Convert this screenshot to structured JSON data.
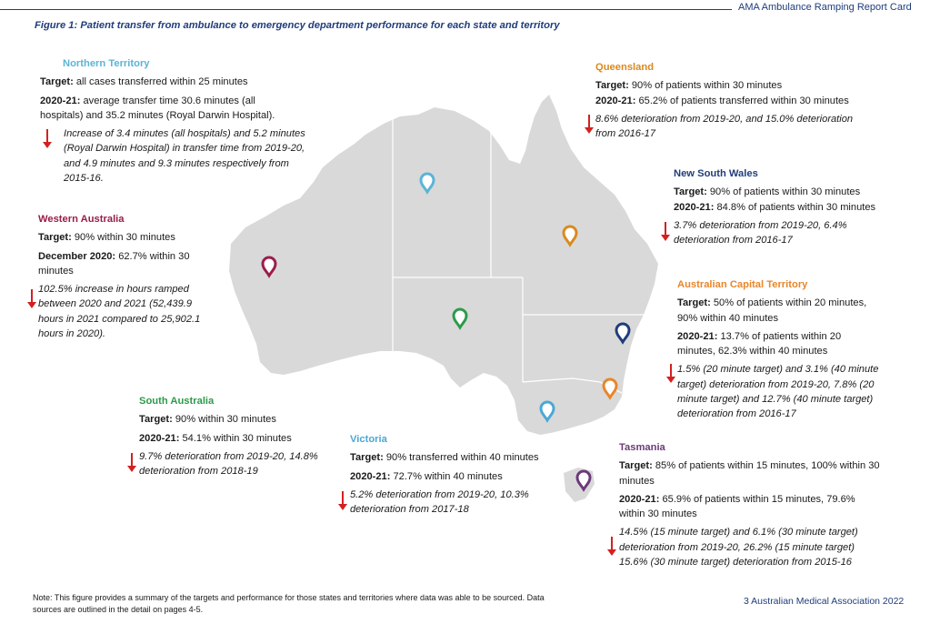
{
  "header": {
    "report_title": "AMA Ambulance Ramping Report Card"
  },
  "figure_title": "Figure 1: Patient transfer from ambulance to emergency department performance for each state and territory",
  "colors": {
    "navy": "#1f3d7a",
    "arrow_red": "#d42020",
    "map_fill": "#d9d9d9"
  },
  "regions": {
    "nt": {
      "name": "Northern Territory",
      "color": "#5ab4d6",
      "target_label": "Target:",
      "target": "all cases transferred within 25 minutes",
      "perf_label": "2020-21:",
      "perf_line1": "average transfer time 30.6 minutes (all",
      "perf_line2": "hospitals) and 35.2 minutes (Royal Darwin Hospital).",
      "change_lines": [
        "Increase of 3.4 minutes (all hospitals) and 5.2 minutes",
        "(Royal Darwin Hospital) in transfer time from 2019-20,",
        "and 4.9 minutes and 9.3 minutes respectively from",
        "2015-16."
      ]
    },
    "wa": {
      "name": "Western Australia",
      "color": "#9b1c4a",
      "target_label": "Target:",
      "target": "90% within 30 minutes",
      "perf_label": "December 2020:",
      "perf_line1": "62.7% within 30",
      "perf_line2": "minutes",
      "change_lines": [
        "102.5% increase in hours ramped",
        "between 2020 and 2021 (52,439.9",
        "hours in 2021 compared to 25,902.1",
        "hours in 2020)."
      ]
    },
    "qld": {
      "name": "Queensland",
      "color": "#d98a1e",
      "target_label": "Target:",
      "target": "90% of patients within 30 minutes",
      "perf_label": "2020-21:",
      "perf_line1": "65.2% of patients transferred within 30 minutes",
      "change_lines": [
        "8.6% deterioration from 2019-20, and 15.0% deterioration",
        "from 2016-17"
      ]
    },
    "nsw": {
      "name": "New South Wales",
      "color": "#1f3d7a",
      "target_label": "Target:",
      "target": "90% of patients within 30 minutes",
      "perf_label": "2020-21:",
      "perf_line1": "84.8% of patients within 30 minutes",
      "change_lines": [
        "3.7% deterioration from 2019-20, 6.4%",
        "deterioration from 2016-17"
      ]
    },
    "act": {
      "name": "Australian Capital Territory",
      "color": "#e8862a",
      "target_label": "Target:",
      "target_line1": "50% of patients within 20 minutes,",
      "target_line2": "90% within 40 minutes",
      "perf_label": "2020-21:",
      "perf_line1": "13.7% of patients within 20",
      "perf_line2": "minutes, 62.3% within 40 minutes",
      "change_lines": [
        "1.5% (20 minute target) and 3.1% (40 minute",
        "target) deterioration from 2019-20, 7.8% (20",
        "minute target) and 12.7% (40 minute target)",
        "deterioration from 2016-17"
      ]
    },
    "sa": {
      "name": "South Australia",
      "color": "#2e9a4a",
      "target_label": "Target:",
      "target": "90% within 30 minutes",
      "perf_label": "2020-21:",
      "perf_line1": "54.1% within 30 minutes",
      "change_lines": [
        "9.7% deterioration from 2019-20, 14.8%",
        "deterioration from 2018-19"
      ]
    },
    "vic": {
      "name": "Victoria",
      "color": "#4aa8d6",
      "target_label": "Target:",
      "target": "90% transferred within 40 minutes",
      "perf_label": "2020-21:",
      "perf_line1": "72.7% within 40 minutes",
      "change_lines": [
        "5.2% deterioration from 2019-20, 10.3%",
        "deterioration from 2017-18"
      ]
    },
    "tas": {
      "name": "Tasmania",
      "color": "#6b3a7a",
      "target_label": "Target:",
      "target_line1": "85% of patients within 15 minutes, 100% within 30",
      "target_line2": "minutes",
      "perf_label": "2020-21:",
      "perf_line1": "65.9% of patients within 15 minutes, 79.6%",
      "perf_line2": "within 30 minutes",
      "change_lines": [
        "14.5% (15 minute target) and 6.1% (30 minute target)",
        "deterioration from 2019-20, 26.2% (15 minute target)",
        "15.6% (30 minute target) deterioration from 2015-16"
      ]
    }
  },
  "footnote_lines": [
    "Note: This figure provides a summary of the targets and performance for those states and territories where data was able to be sourced. Data",
    "sources are outlined in the detail on pages 4-5."
  ],
  "page_footer": "3  Australian Medical Association 2022"
}
